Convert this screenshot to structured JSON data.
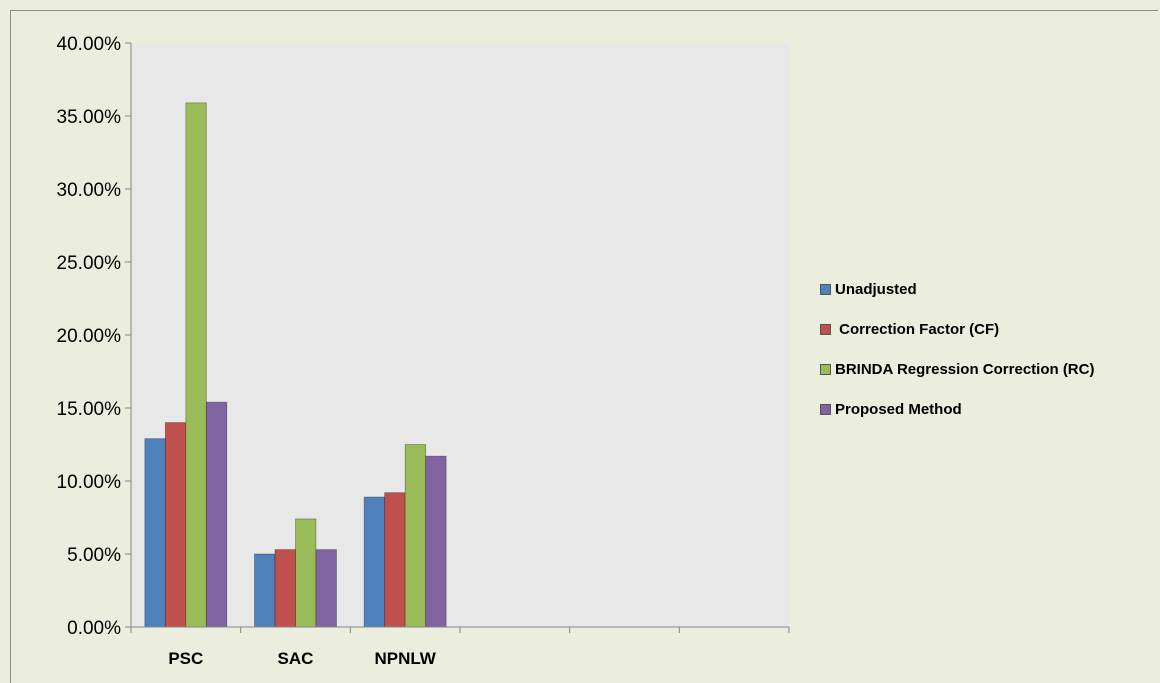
{
  "chart_data": {
    "type": "bar",
    "categories": [
      "PSC",
      "SAC",
      "NPNLW",
      "",
      "",
      ""
    ],
    "series": [
      {
        "name": "Unadjusted",
        "color": "#4f81bd",
        "values": [
          12.9,
          5.0,
          8.9,
          null,
          null,
          null
        ]
      },
      {
        "name": " Correction Factor (CF)",
        "color": "#c0504d",
        "values": [
          14.0,
          5.3,
          9.2,
          null,
          null,
          null
        ]
      },
      {
        "name": "BRINDA Regression Correction (RC)",
        "color": "#9bbb59",
        "values": [
          35.9,
          7.4,
          12.5,
          null,
          null,
          null
        ]
      },
      {
        "name": "Proposed Method",
        "color": "#8064a2",
        "values": [
          15.4,
          5.3,
          11.7,
          null,
          null,
          null
        ]
      }
    ],
    "y_ticks": [
      "0.00%",
      "5.00%",
      "10.00%",
      "15.00%",
      "20.00%",
      "25.00%",
      "30.00%",
      "35.00%",
      "40.00%"
    ],
    "ylim": [
      0,
      40
    ],
    "unit": "%",
    "grid": false,
    "legend_position": "right",
    "plot_background": "#e8e8e8",
    "page_background": "#ebeedd"
  }
}
